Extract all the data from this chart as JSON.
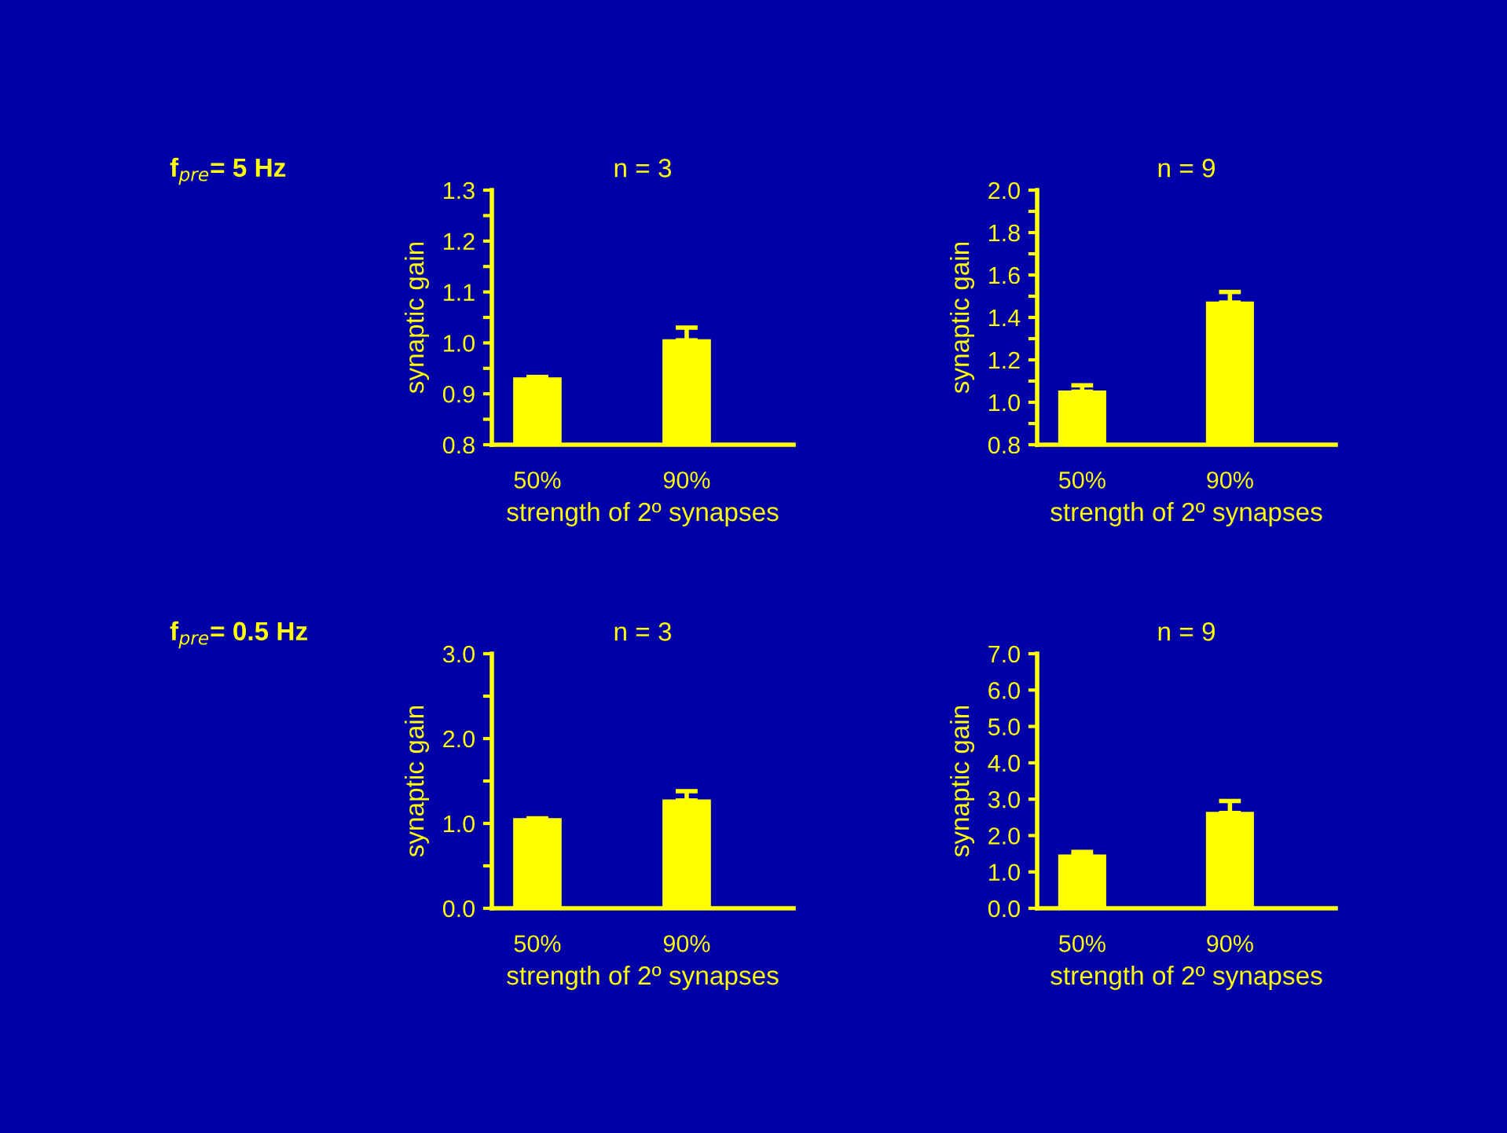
{
  "chart_data": [
    {
      "type": "bar",
      "title": "n = 3",
      "xlabel": "strength of 2º synapses",
      "ylabel": "synaptic gain",
      "annotations": [
        "f$_{pre}$= 5 Hz"
      ],
      "color": "#ffff00",
      "categories": [
        "50%",
        "90%"
      ],
      "values": [
        0.93,
        1.005
      ],
      "errors": [
        [
          0.93,
          0.933
        ],
        [
          1.005,
          1.03
        ]
      ],
      "ylim": [
        0.8,
        1.3
      ],
      "yticks": [
        {
          "value": 0.8,
          "label": "0.8"
        },
        {
          "value": 0.85,
          "label": null
        },
        {
          "value": 0.9,
          "label": "0.9"
        },
        {
          "value": 0.95,
          "label": null
        },
        {
          "value": 1.0,
          "label": "1.0"
        },
        {
          "value": 1.05,
          "label": null
        },
        {
          "value": 1.1,
          "label": "1.1"
        },
        {
          "value": 1.15,
          "label": null
        },
        {
          "value": 1.2,
          "label": "1.2"
        },
        {
          "value": 1.25,
          "label": null
        },
        {
          "value": 1.3,
          "label": "1.3"
        }
      ]
    },
    {
      "type": "bar",
      "title": "n = 9",
      "xlabel": "strength of 2º synapses",
      "ylabel": "synaptic gain",
      "color": "#ffff00",
      "categories": [
        "50%",
        "90%"
      ],
      "values": [
        1.05,
        1.47
      ],
      "errors": [
        [
          1.05,
          1.08
        ],
        [
          1.47,
          1.52
        ]
      ],
      "ylim": [
        0.8,
        2.0
      ],
      "yticks": [
        {
          "value": 0.8,
          "label": "0.8"
        },
        {
          "value": 0.9,
          "label": null
        },
        {
          "value": 1.0,
          "label": "1.0"
        },
        {
          "value": 1.1,
          "label": null
        },
        {
          "value": 1.2,
          "label": "1.2"
        },
        {
          "value": 1.3,
          "label": null
        },
        {
          "value": 1.4,
          "label": "1.4"
        },
        {
          "value": 1.5,
          "label": null
        },
        {
          "value": 1.6,
          "label": "1.6"
        },
        {
          "value": 1.7,
          "label": null
        },
        {
          "value": 1.8,
          "label": "1.8"
        },
        {
          "value": 1.9,
          "label": null
        },
        {
          "value": 2.0,
          "label": "2.0"
        }
      ]
    },
    {
      "type": "bar",
      "title": "n = 3",
      "xlabel": "strength of 2º synapses",
      "ylabel": "synaptic gain",
      "annotations": [
        "f$_{pre}$= 0.5 Hz"
      ],
      "color": "#ffff00",
      "categories": [
        "50%",
        "90%"
      ],
      "values": [
        1.05,
        1.27
      ],
      "errors": [
        [
          1.05,
          1.06
        ],
        [
          1.27,
          1.38
        ]
      ],
      "ylim": [
        0.0,
        3.0
      ],
      "yticks": [
        {
          "value": 0.0,
          "label": "0.0"
        },
        {
          "value": 0.5,
          "label": null
        },
        {
          "value": 1.0,
          "label": "1.0"
        },
        {
          "value": 1.5,
          "label": null
        },
        {
          "value": 2.0,
          "label": "2.0"
        },
        {
          "value": 2.5,
          "label": null
        },
        {
          "value": 3.0,
          "label": "3.0"
        }
      ]
    },
    {
      "type": "bar",
      "title": "n = 9",
      "xlabel": "strength of 2º synapses",
      "ylabel": "synaptic gain",
      "color": "#ffff00",
      "categories": [
        "50%",
        "90%"
      ],
      "values": [
        1.45,
        2.62
      ],
      "errors": [
        [
          1.45,
          1.55
        ],
        [
          2.62,
          2.95
        ]
      ],
      "ylim": [
        0.0,
        7.0
      ],
      "yticks": [
        {
          "value": 0.0,
          "label": "0.0"
        },
        {
          "value": 1.0,
          "label": "1.0"
        },
        {
          "value": 2.0,
          "label": "2.0"
        },
        {
          "value": 3.0,
          "label": "3.0"
        },
        {
          "value": 4.0,
          "label": "4.0"
        },
        {
          "value": 5.0,
          "label": "5.0"
        },
        {
          "value": 6.0,
          "label": "6.0"
        },
        {
          "value": 7.0,
          "label": "7.0"
        }
      ]
    }
  ]
}
